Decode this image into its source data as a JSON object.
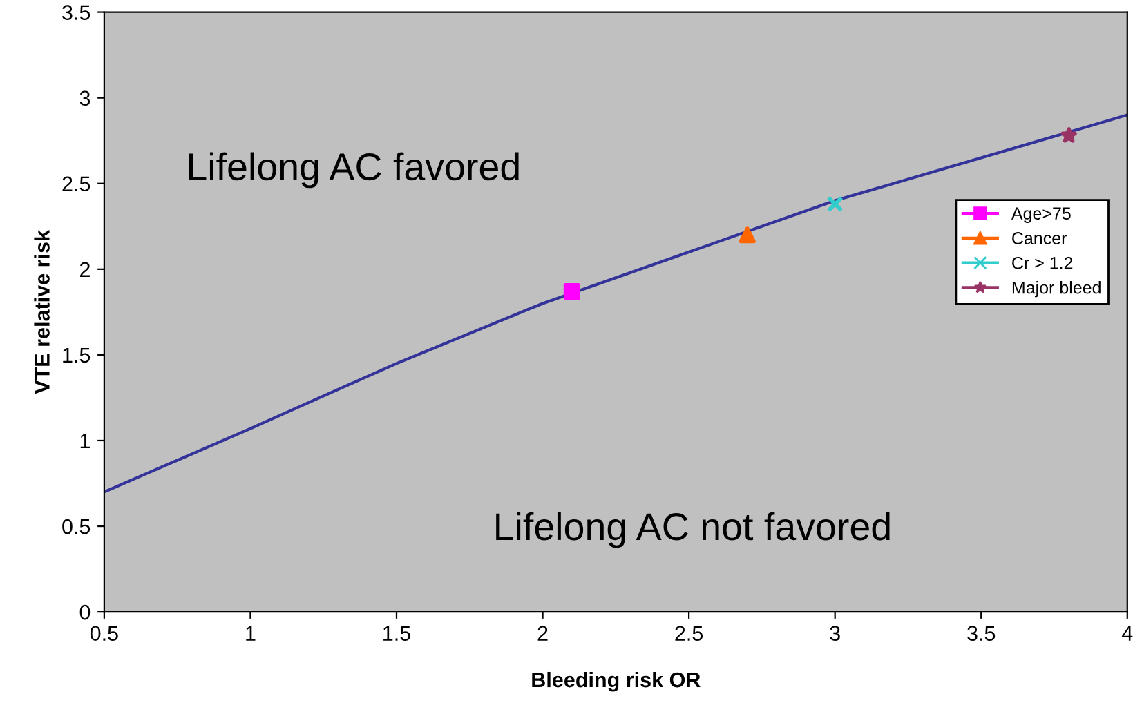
{
  "chart_data": {
    "type": "line",
    "xlabel": "Bleeding risk OR",
    "ylabel": "VTE relative risk",
    "xlim": [
      0.5,
      4
    ],
    "ylim": [
      0,
      3.5
    ],
    "xticks": [
      0.5,
      1,
      1.5,
      2,
      2.5,
      3,
      3.5,
      4
    ],
    "yticks": [
      0,
      0.5,
      1,
      1.5,
      2,
      2.5,
      3,
      3.5
    ],
    "grid": false,
    "legend": "right",
    "annotations": [
      "Lifelong AC favored",
      "Lifelong AC not favored"
    ],
    "series": [
      {
        "color": "#333399",
        "x": [
          0.5,
          1,
          1.5,
          2,
          2.5,
          3,
          3.5,
          4
        ],
        "values": [
          0.7,
          1.07,
          1.45,
          1.8,
          2.1,
          2.4,
          2.65,
          2.9
        ],
        "marker": "none"
      },
      {
        "name": "Age>75",
        "type": "scatter",
        "color": "#ff00ff",
        "x": [
          2.1
        ],
        "values": [
          1.87
        ],
        "marker": "square"
      },
      {
        "name": "Cancer",
        "type": "scatter",
        "color": "#ff6600",
        "x": [
          2.7
        ],
        "values": [
          2.2
        ],
        "marker": "triangle"
      },
      {
        "name": "Cr > 1.2",
        "type": "scatter",
        "color": "#33cccc",
        "x": [
          3.0
        ],
        "values": [
          2.38
        ],
        "marker": "cross"
      },
      {
        "name": "Major bleed",
        "type": "scatter",
        "color": "#993366",
        "x": [
          3.8
        ],
        "values": [
          2.78
        ],
        "marker": "star"
      }
    ]
  }
}
